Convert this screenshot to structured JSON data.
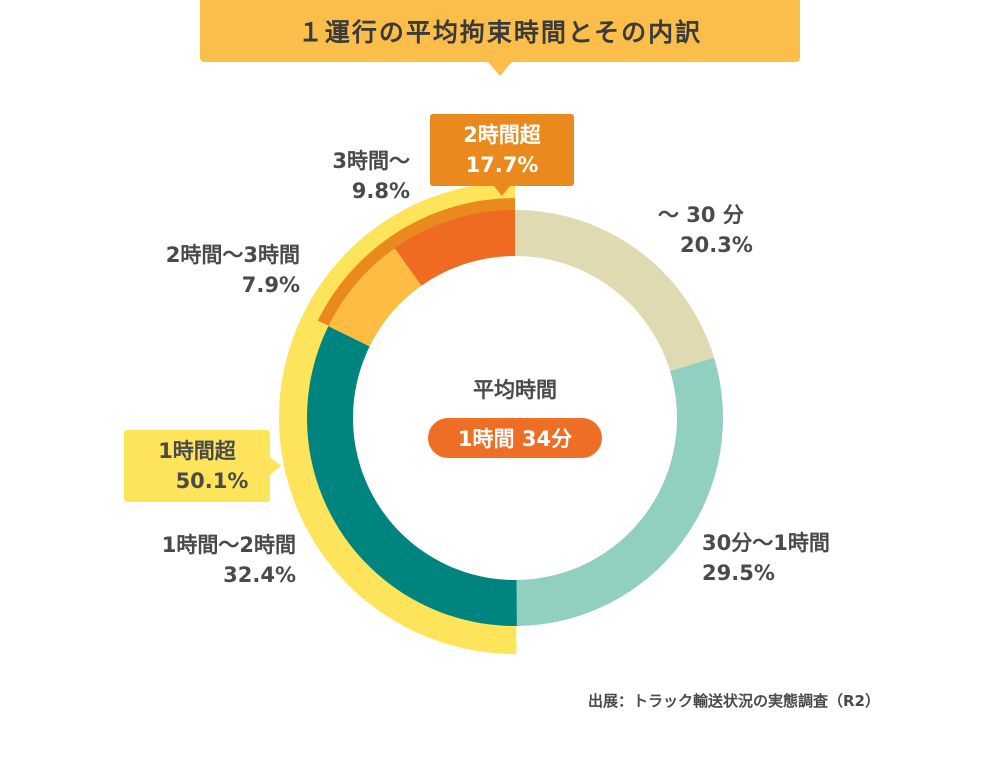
{
  "title": "１運行の平均拘束時間とその内訳",
  "center": {
    "label": "平均時間",
    "value": "1時間 34分"
  },
  "source": "出展：トラック輸送状況の実態調査（R2）",
  "chart_data": {
    "type": "pie",
    "categories": [
      "～ 30 分",
      "30分～1時間",
      "1時間～2時間",
      "2時間～3時間",
      "3時間～"
    ],
    "values": [
      20.3,
      29.5,
      32.4,
      7.9,
      9.8
    ],
    "value_labels": [
      "20.3%",
      "29.5%",
      "32.4%",
      "7.9%",
      "9.8%"
    ],
    "colors": [
      "#dfdab1",
      "#91cfc0",
      "#008480",
      "#fdbd42",
      "#ef6b22"
    ],
    "groups": [
      {
        "label": "2時間超",
        "value": 17.7,
        "value_label": "17.7%",
        "color": "#ea8a1e"
      },
      {
        "label": "1時間超",
        "value": 50.1,
        "value_label": "50.1%",
        "color": "#fde45a"
      }
    ]
  }
}
